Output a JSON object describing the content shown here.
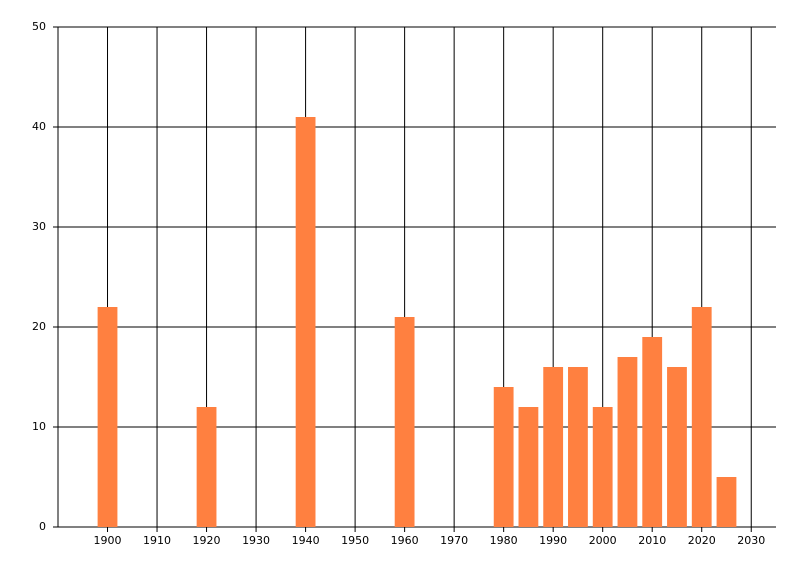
{
  "chart_data": {
    "type": "bar",
    "x": [
      1900,
      1920,
      1940,
      1960,
      1980,
      1985,
      1990,
      1995,
      2000,
      2005,
      2010,
      2015,
      2020,
      2025
    ],
    "values": [
      22,
      12,
      41,
      21,
      14,
      12,
      16,
      16,
      12,
      17,
      19,
      16,
      22,
      5
    ],
    "color": "#ff8040",
    "xlim": [
      1890,
      2035
    ],
    "xticks": [
      1900,
      1910,
      1920,
      1930,
      1940,
      1950,
      1960,
      1970,
      1980,
      1990,
      2000,
      2010,
      2020,
      2030
    ],
    "ylim": [
      0,
      50
    ],
    "yticks": [
      0,
      10,
      20,
      30,
      40,
      50
    ],
    "grid": true
  }
}
